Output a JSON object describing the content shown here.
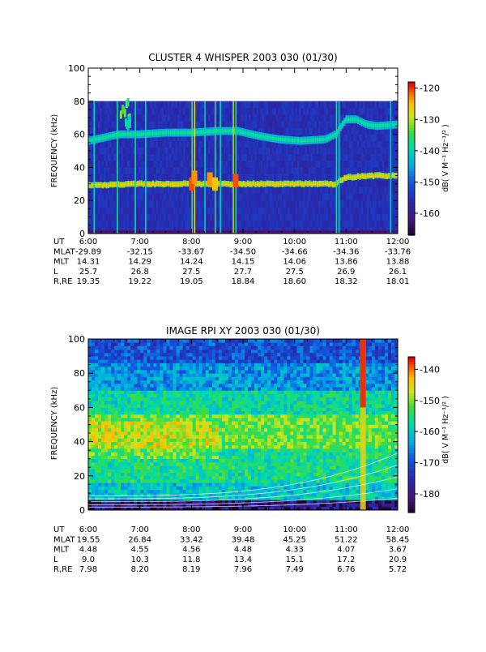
{
  "chart_data": [
    {
      "type": "heatmap",
      "title": "CLUSTER 4 WHISPER 2003 030 (01/30)",
      "ylabel": "FREQUENCY (kHz)",
      "ylim": [
        0,
        100
      ],
      "yticks": [
        "0",
        "20",
        "40",
        "60",
        "80",
        "100"
      ],
      "xlim": [
        "6:00",
        "12:00"
      ],
      "colorbar": {
        "label": "dB( V M⁻¹ Hz⁻¹/² )",
        "range": [
          -167,
          -118
        ],
        "ticks": [
          "-120",
          "-130",
          "-140",
          "-150",
          "-160"
        ]
      },
      "data_max_frequency_khz": 80,
      "features": {
        "upper_band_khz": [
          [
            6.0,
            56
          ],
          [
            6.6,
            60
          ],
          [
            7.0,
            60
          ],
          [
            7.5,
            61
          ],
          [
            8.0,
            61
          ],
          [
            8.5,
            62
          ],
          [
            8.9,
            62
          ],
          [
            9.3,
            59
          ],
          [
            9.7,
            57
          ],
          [
            10.1,
            56
          ],
          [
            10.6,
            57
          ],
          [
            10.8,
            60
          ],
          [
            11.0,
            69
          ],
          [
            11.2,
            69
          ],
          [
            11.4,
            66
          ],
          [
            11.6,
            65
          ],
          [
            12.0,
            66
          ]
        ],
        "lower_band_khz": [
          [
            6.0,
            29
          ],
          [
            7.0,
            30
          ],
          [
            8.0,
            30
          ],
          [
            9.0,
            30
          ],
          [
            10.0,
            30
          ],
          [
            10.8,
            30
          ],
          [
            11.0,
            34
          ],
          [
            11.5,
            35
          ],
          [
            12.0,
            35
          ]
        ]
      },
      "ephemeris": {
        "row_labels": [
          "UT",
          "MLAT",
          "MLT",
          "L",
          "R,RE"
        ],
        "UT": [
          "6:00",
          "7:00",
          "8:00",
          "9:00",
          "10:00",
          "11:00",
          "12:00"
        ],
        "MLAT": [
          "-29.89",
          "-32.15",
          "-33.67",
          "-34.50",
          "-34.66",
          "-34.36",
          "-33.76"
        ],
        "MLT": [
          "14.31",
          "14.29",
          "14.24",
          "14.15",
          "14.06",
          "13.86",
          "13.88"
        ],
        "L": [
          "25.7",
          "26.8",
          "27.5",
          "27.7",
          "27.5",
          "26.9",
          "26.1"
        ],
        "R,RE": [
          "19.35",
          "19.22",
          "19.05",
          "18.84",
          "18.60",
          "18.32",
          "18.01"
        ]
      }
    },
    {
      "type": "heatmap",
      "title": "IMAGE RPI XY 2003 030 (01/30)",
      "ylabel": "FREQUENCY (kHz)",
      "ylim": [
        0,
        100
      ],
      "yticks": [
        "0",
        "20",
        "40",
        "60",
        "80",
        "100"
      ],
      "xlim": [
        "6:00",
        "12:00"
      ],
      "colorbar": {
        "label": "dB( V M⁻¹ Hz⁻¹/² )",
        "range": [
          -186,
          -136
        ],
        "ticks": [
          "-140",
          "-150",
          "-160",
          "-170",
          "-180"
        ]
      },
      "ephemeris": {
        "row_labels": [
          "UT",
          "MLAT",
          "MLT",
          "L",
          "R,RE"
        ],
        "UT": [
          "6:00",
          "7:00",
          "8:00",
          "9:00",
          "10:00",
          "11:00",
          "12:00"
        ],
        "MLAT": [
          "19.55",
          "26.84",
          "33.42",
          "39.48",
          "45.25",
          "51.22",
          "58.45"
        ],
        "MLT": [
          "4.48",
          "4.55",
          "4.56",
          "4.48",
          "4.33",
          "4.07",
          "3.67"
        ],
        "L": [
          "9.0",
          "10.3",
          "11.8",
          "13.4",
          "15.1",
          "17.2",
          "20.9"
        ],
        "R,RE": [
          "7.98",
          "8.20",
          "8.19",
          "7.96",
          "7.49",
          "6.76",
          "5.72"
        ]
      }
    }
  ]
}
